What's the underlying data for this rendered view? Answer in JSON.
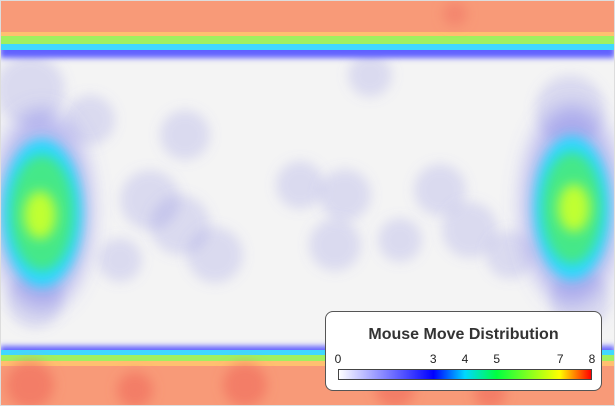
{
  "chart_data": {
    "type": "heatmap",
    "title": "Mouse Move Distribution",
    "colorbar": {
      "min": 0,
      "max": 8,
      "ticks": [
        "0",
        "3",
        "4",
        "5",
        "7",
        "8"
      ],
      "tick_values": [
        0,
        3,
        4,
        5,
        7,
        8
      ],
      "colors": [
        "#ffffff",
        "#0000ff",
        "#00d8ff",
        "#00ff40",
        "#ffff00",
        "#ff0000"
      ]
    },
    "regions": [
      {
        "name": "top-band",
        "x": [
          0,
          1
        ],
        "y": [
          0.0,
          0.12
        ],
        "value": 7.2
      },
      {
        "name": "bottom-band",
        "x": [
          0,
          1
        ],
        "y": [
          0.87,
          1.0
        ],
        "value": 7.2
      },
      {
        "name": "left-cluster",
        "x": [
          0.06
        ],
        "y": [
          0.52
        ],
        "value": 5.0
      },
      {
        "name": "right-cluster",
        "x": [
          0.94
        ],
        "y": [
          0.5
        ],
        "value": 5.0
      }
    ],
    "background": "#f4f4f4"
  }
}
